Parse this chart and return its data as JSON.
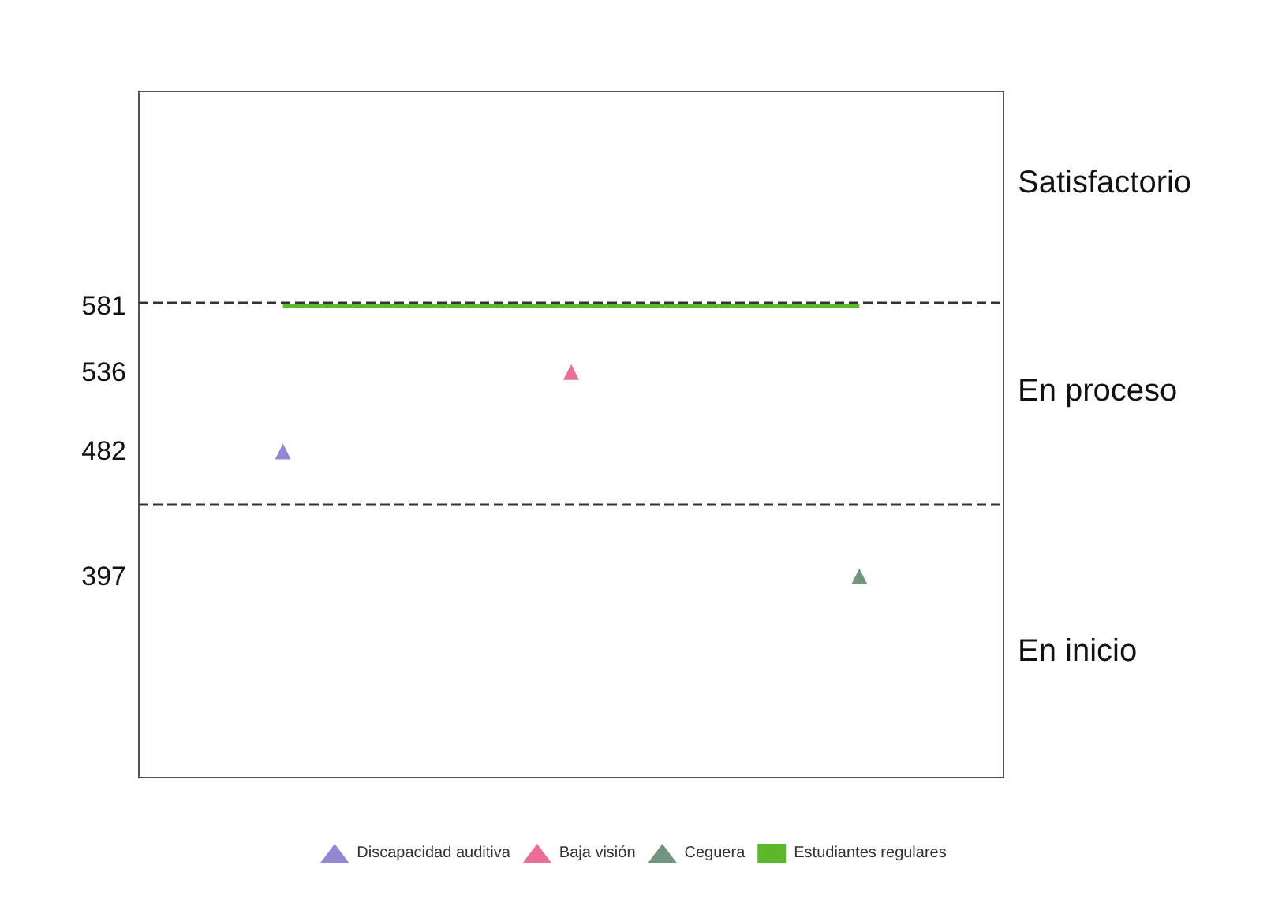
{
  "chart_data": {
    "type": "scatter",
    "legend": "bottom",
    "grid": false,
    "tick_labels": "y",
    "categories": [
      null,
      null,
      null
    ],
    "ylim": [
      260,
      727
    ],
    "yticks": [
      397,
      482,
      536,
      581
    ],
    "series": [
      {
        "name": "Discapacidad auditiva",
        "marker": "triangle",
        "color": "#7b68c8",
        "values": [
          482,
          null,
          null
        ]
      },
      {
        "name": "Baja visión",
        "marker": "triangle",
        "color": "#e54a7c",
        "values": [
          null,
          536,
          null
        ]
      },
      {
        "name": "Ceguera",
        "marker": "triangle",
        "color": "#4f7a5e",
        "values": [
          null,
          null,
          397
        ]
      },
      {
        "name": "Estudiantes regulares",
        "type": "line",
        "marker": "none",
        "color": "#5cb82a",
        "values": [
          581,
          581,
          581
        ]
      }
    ],
    "ref_lines": [
      {
        "axis": "y",
        "value": 583,
        "line_style": "dashed",
        "color": "#333333"
      },
      {
        "axis": "y",
        "value": 446,
        "line_style": "dashed",
        "color": "#333333"
      }
    ],
    "annotations": [
      "Satisfactorio",
      "En proceso",
      "En inicio"
    ]
  }
}
